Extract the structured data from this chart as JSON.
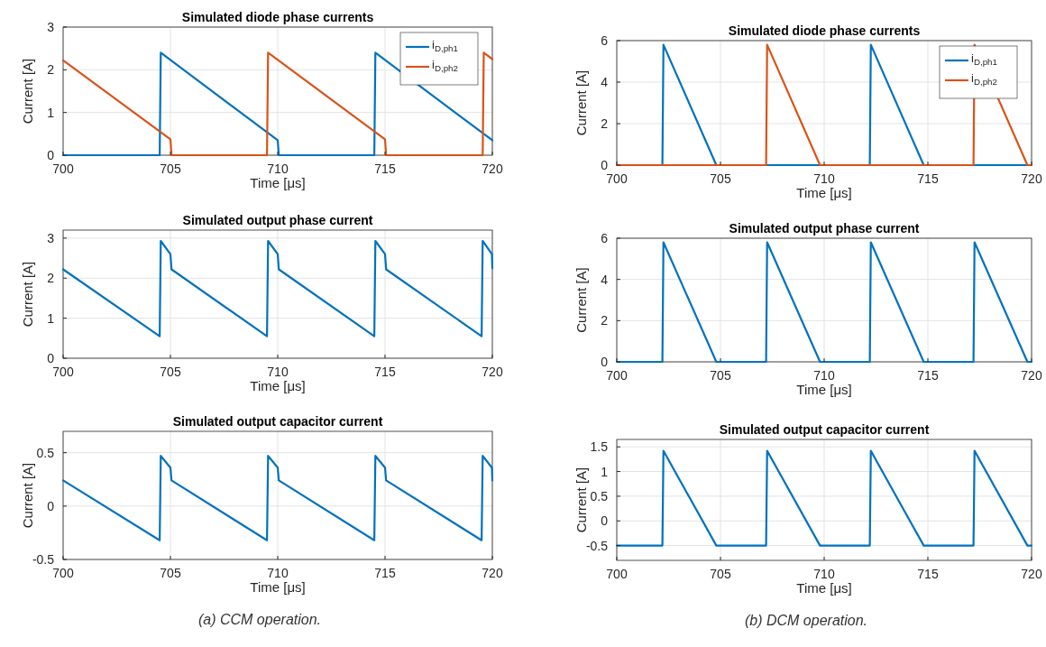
{
  "chart_data": [
    {
      "type": "line",
      "title": "Simulated diode phase currents",
      "xlabel": "Time [μs]",
      "ylabel": "Current [A]",
      "xlim": [
        700,
        720
      ],
      "xticks": [
        700,
        705,
        710,
        715,
        720
      ],
      "ylim": [
        0,
        3
      ],
      "yticks": [
        0,
        1,
        2,
        3
      ],
      "grid": true,
      "legend": "top right",
      "series": [
        {
          "name": "i$_{D,ph1}$",
          "color": "#0072bd",
          "x": [
            700,
            704.5,
            704.55,
            710,
            710.05,
            714.5,
            714.55,
            720
          ],
          "values": [
            0,
            0,
            2.4,
            0.35,
            0,
            0,
            2.4,
            0.35
          ]
        },
        {
          "name": "i$_{D,ph2}$",
          "color": "#d95319",
          "x": [
            700,
            705,
            705.05,
            709.5,
            709.55,
            715,
            715.05,
            719.55,
            719.6,
            720
          ],
          "values": [
            2.22,
            0.37,
            0,
            0,
            2.4,
            0.37,
            0,
            0,
            2.4,
            2.25
          ]
        }
      ]
    },
    {
      "type": "line",
      "title": "Simulated output phase current",
      "xlabel": "Time [μs]",
      "ylabel": "Current [A]",
      "xlim": [
        700,
        720
      ],
      "xticks": [
        700,
        705,
        710,
        715,
        720
      ],
      "ylim": [
        0,
        3.2
      ],
      "yticks": [
        0,
        1,
        2,
        3
      ],
      "grid": true,
      "series": [
        {
          "color": "#0072bd",
          "x": [
            700,
            704.5,
            704.55,
            705,
            705.05,
            709.5,
            709.55,
            710,
            710.05,
            714.5,
            714.55,
            715,
            715.05,
            719.5,
            719.55,
            719.98,
            720
          ],
          "values": [
            2.22,
            0.55,
            2.93,
            2.6,
            2.22,
            0.55,
            2.93,
            2.6,
            2.22,
            0.55,
            2.93,
            2.6,
            2.22,
            0.55,
            2.93,
            2.6,
            2.25
          ]
        }
      ]
    },
    {
      "type": "line",
      "title": "Simulated output capacitor current",
      "xlabel": "Time [μs]",
      "ylabel": "Current [A]",
      "xlim": [
        700,
        720
      ],
      "xticks": [
        700,
        705,
        710,
        715,
        720
      ],
      "ylim": [
        -0.5,
        0.7
      ],
      "yticks": [
        -0.5,
        0,
        0.5
      ],
      "grid": true,
      "annotations": [
        "(a) CCM operation."
      ],
      "series": [
        {
          "color": "#0072bd",
          "x": [
            700,
            704.5,
            704.55,
            705,
            705.05,
            709.5,
            709.55,
            710,
            710.05,
            714.5,
            714.55,
            715,
            715.05,
            719.5,
            719.55,
            719.98,
            720
          ],
          "values": [
            0.24,
            -0.32,
            0.47,
            0.36,
            0.24,
            -0.32,
            0.47,
            0.36,
            0.24,
            -0.32,
            0.47,
            0.36,
            0.24,
            -0.32,
            0.47,
            0.36,
            0.24
          ]
        }
      ]
    },
    {
      "type": "line",
      "title": "Simulated diode phase currents",
      "xlabel": "Time [μs]",
      "ylabel": "Current [A]",
      "xlim": [
        700,
        720
      ],
      "xticks": [
        700,
        705,
        710,
        715,
        720
      ],
      "ylim": [
        0,
        6
      ],
      "yticks": [
        0,
        2,
        4,
        6
      ],
      "grid": true,
      "legend": "top right",
      "series": [
        {
          "name": "i$_{D,ph1}$",
          "color": "#0072bd",
          "x": [
            700,
            702.2,
            702.25,
            704.8,
            712.2,
            712.25,
            714.8,
            720
          ],
          "values": [
            0,
            0,
            5.8,
            0,
            0,
            5.8,
            0,
            0
          ]
        },
        {
          "name": "i$_{D,ph2}$",
          "color": "#d95319",
          "x": [
            700,
            707.2,
            707.25,
            709.8,
            717.2,
            717.25,
            719.8,
            720
          ],
          "values": [
            0,
            0,
            5.8,
            0,
            0,
            5.8,
            0,
            0
          ]
        }
      ]
    },
    {
      "type": "line",
      "title": "Simulated output phase current",
      "xlabel": "Time [μs]",
      "ylabel": "Current [A]",
      "xlim": [
        700,
        720
      ],
      "xticks": [
        700,
        705,
        710,
        715,
        720
      ],
      "ylim": [
        0,
        6
      ],
      "yticks": [
        0,
        2,
        4,
        6
      ],
      "grid": true,
      "series": [
        {
          "color": "#0072bd",
          "x": [
            700,
            702.2,
            702.25,
            704.8,
            707.2,
            707.25,
            709.8,
            712.2,
            712.25,
            714.8,
            717.2,
            717.25,
            719.8,
            720
          ],
          "values": [
            0,
            0,
            5.8,
            0,
            0,
            5.8,
            0,
            0,
            5.8,
            0,
            0,
            5.8,
            0,
            0
          ]
        }
      ]
    },
    {
      "type": "line",
      "title": "Simulated output capacitor current",
      "xlabel": "Time [μs]",
      "ylabel": "Current [A]",
      "xlim": [
        700,
        720
      ],
      "xticks": [
        700,
        705,
        710,
        715,
        720
      ],
      "ylim": [
        -0.8,
        1.65
      ],
      "yticks": [
        -0.5,
        0,
        0.5,
        1,
        1.5
      ],
      "grid": true,
      "annotations": [
        "(b) DCM operation."
      ],
      "series": [
        {
          "color": "#0072bd",
          "x": [
            700,
            702.2,
            702.25,
            704.8,
            707.2,
            707.25,
            709.8,
            712.2,
            712.25,
            714.8,
            717.2,
            717.25,
            719.8,
            720
          ],
          "values": [
            -0.5,
            -0.5,
            1.42,
            -0.5,
            -0.5,
            1.42,
            -0.5,
            -0.5,
            1.42,
            -0.5,
            -0.5,
            1.42,
            -0.5,
            -0.5
          ]
        }
      ]
    }
  ]
}
